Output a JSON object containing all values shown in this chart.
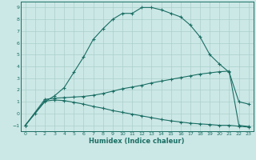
{
  "xlabel": "Humidex (Indice chaleur)",
  "bg_color": "#cce8e6",
  "line_color": "#1a6e64",
  "grid_color": "#aacfcc",
  "spine_color": "#1a6e64",
  "xlim": [
    -0.5,
    23.5
  ],
  "ylim": [
    -1.5,
    9.5
  ],
  "xticks": [
    0,
    1,
    2,
    3,
    4,
    5,
    6,
    7,
    8,
    9,
    10,
    11,
    12,
    13,
    14,
    15,
    16,
    17,
    18,
    19,
    20,
    21,
    22,
    23
  ],
  "yticks": [
    -1,
    0,
    1,
    2,
    3,
    4,
    5,
    6,
    7,
    8,
    9
  ],
  "line1_x": [
    0,
    1,
    2,
    3,
    4,
    5,
    6,
    7,
    8,
    9,
    10,
    11,
    12,
    13,
    14,
    15,
    16,
    17,
    18,
    19,
    20,
    21,
    22,
    23
  ],
  "line1_y": [
    -1.0,
    0.0,
    1.0,
    1.5,
    2.2,
    3.5,
    4.8,
    6.3,
    7.2,
    8.0,
    8.5,
    8.5,
    9.0,
    9.0,
    8.8,
    8.5,
    8.2,
    7.5,
    6.5,
    5.0,
    4.2,
    3.5,
    1.0,
    0.8
  ],
  "line2_x": [
    0,
    2,
    3,
    4,
    5,
    6,
    7,
    8,
    9,
    10,
    11,
    12,
    13,
    14,
    15,
    16,
    17,
    18,
    19,
    20,
    21,
    22,
    23
  ],
  "line2_y": [
    -1.0,
    1.2,
    1.3,
    1.35,
    1.4,
    1.45,
    1.55,
    1.7,
    1.9,
    2.1,
    2.25,
    2.4,
    2.6,
    2.75,
    2.9,
    3.05,
    3.2,
    3.35,
    3.45,
    3.55,
    3.6,
    -1.0,
    -1.1
  ],
  "line3_x": [
    0,
    2,
    3,
    4,
    5,
    6,
    7,
    8,
    9,
    10,
    11,
    12,
    13,
    14,
    15,
    16,
    17,
    18,
    19,
    20,
    21,
    22,
    23
  ],
  "line3_y": [
    -1.0,
    1.05,
    1.15,
    1.1,
    0.95,
    0.8,
    0.6,
    0.45,
    0.25,
    0.1,
    -0.05,
    -0.2,
    -0.35,
    -0.5,
    -0.62,
    -0.72,
    -0.82,
    -0.88,
    -0.93,
    -1.0,
    -1.0,
    -1.08,
    -1.15
  ]
}
